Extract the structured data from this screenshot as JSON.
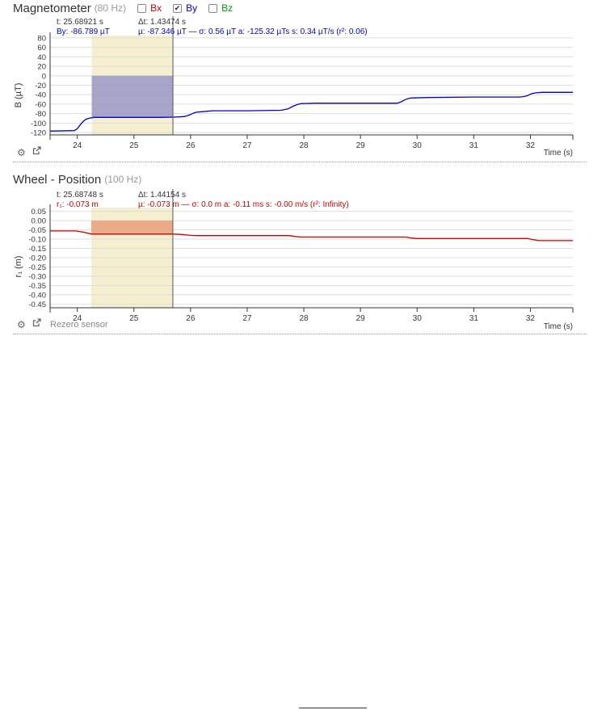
{
  "colors": {
    "bx": "#cc0000",
    "by": "#0000cc",
    "bz": "#009900",
    "wheel": "#cc0000",
    "selection": "#f5efcf",
    "mag_fill": "#9999c8",
    "wheel_fill": "#e6a07a"
  },
  "magnetometer": {
    "title": "Magnetometer",
    "rate": "(80 Hz)",
    "checkboxes": [
      {
        "label": "Bx",
        "checked": false,
        "color": "#cc0000"
      },
      {
        "label": "By",
        "checked": true,
        "color": "#0000cc"
      },
      {
        "label": "Bz",
        "checked": false,
        "color": "#009900"
      }
    ],
    "cursor": {
      "t": "t: 25.68921 s",
      "value": "By: -86.789 µT",
      "dt": "Δt: 1.43474 s",
      "stats": "µ: -87.346 µT — σ: 0.56 µT   a: -125.32 µTs   s: 0.34 µT/s (r²: 0.06)"
    },
    "tools": {
      "settings_icon": "gear-icon",
      "export_icon": "external-link-icon"
    }
  },
  "wheel": {
    "title": "Wheel - Position",
    "rate": "(100 Hz)",
    "cursor": {
      "t": "t: 25.68748 s",
      "value": "r₁: -0.073 m",
      "dt": "Δt: 1.44154 s",
      "stats": "µ: -0.073 m — σ: 0.0 m   a: -0.11 ms   s: -0.00 m/s (r²: Infinity)"
    },
    "tools": {
      "settings_icon": "gear-icon",
      "export_icon": "external-link-icon",
      "rezero_label": "Rezero sensor"
    }
  },
  "chart_data": [
    {
      "type": "line",
      "ylabel": "B (µT)",
      "xlabel": "Time (s)",
      "xlim": [
        23.52,
        32.75
      ],
      "ylim": [
        -125,
        85
      ],
      "xticks": [
        24,
        25,
        26,
        27,
        28,
        29,
        30,
        31,
        32
      ],
      "yticks": [
        80,
        60,
        40,
        20,
        0,
        -20,
        -40,
        -60,
        -80,
        -100,
        -120
      ],
      "grid": true,
      "selection": {
        "start": 24.255,
        "end": 25.689
      },
      "series": [
        {
          "name": "By",
          "x": [
            23.52,
            23.95,
            24.0,
            24.05,
            24.1,
            24.15,
            24.2,
            24.25,
            24.3,
            25.5,
            25.7,
            25.8,
            25.9,
            26.0,
            26.05,
            26.1,
            26.2,
            26.3,
            26.4,
            27.0,
            27.6,
            27.72,
            27.8,
            27.88,
            27.95,
            28.2,
            29.0,
            29.65,
            29.72,
            29.78,
            29.85,
            29.9,
            30.2,
            31.0,
            31.8,
            31.88,
            31.95,
            32.0,
            32.05,
            32.1,
            32.2,
            32.75
          ],
          "values": [
            -117,
            -116,
            -112,
            -104,
            -97,
            -92,
            -90,
            -89,
            -88,
            -88,
            -87.5,
            -87,
            -86,
            -82,
            -79,
            -77,
            -76,
            -75,
            -74,
            -74,
            -73,
            -70,
            -65,
            -61,
            -59,
            -58,
            -58,
            -58,
            -55,
            -51,
            -48,
            -47,
            -46,
            -45,
            -45,
            -44,
            -42,
            -39,
            -37,
            -36,
            -35,
            -35
          ]
        }
      ]
    },
    {
      "type": "line",
      "ylabel": "r₁ (m)",
      "xlabel": "Time (s)",
      "xlim": [
        23.52,
        32.75
      ],
      "ylim": [
        -0.47,
        0.07
      ],
      "xticks": [
        24,
        25,
        26,
        27,
        28,
        29,
        30,
        31,
        32
      ],
      "yticks": [
        0.05,
        0.0,
        -0.05,
        -0.1,
        -0.15,
        -0.2,
        -0.25,
        -0.3,
        -0.35,
        -0.4,
        -0.45
      ],
      "grid": true,
      "selection": {
        "start": 24.246,
        "end": 25.687
      },
      "series": [
        {
          "name": "r₁",
          "x": [
            23.52,
            23.97,
            24.1,
            24.25,
            25.7,
            25.85,
            26.0,
            26.1,
            27.75,
            27.85,
            27.95,
            29.8,
            29.9,
            30.0,
            31.95,
            32.05,
            32.15,
            32.75
          ],
          "values": [
            -0.056,
            -0.056,
            -0.062,
            -0.073,
            -0.073,
            -0.075,
            -0.08,
            -0.081,
            -0.081,
            -0.086,
            -0.089,
            -0.089,
            -0.094,
            -0.097,
            -0.097,
            -0.103,
            -0.108,
            -0.108
          ]
        }
      ]
    }
  ]
}
